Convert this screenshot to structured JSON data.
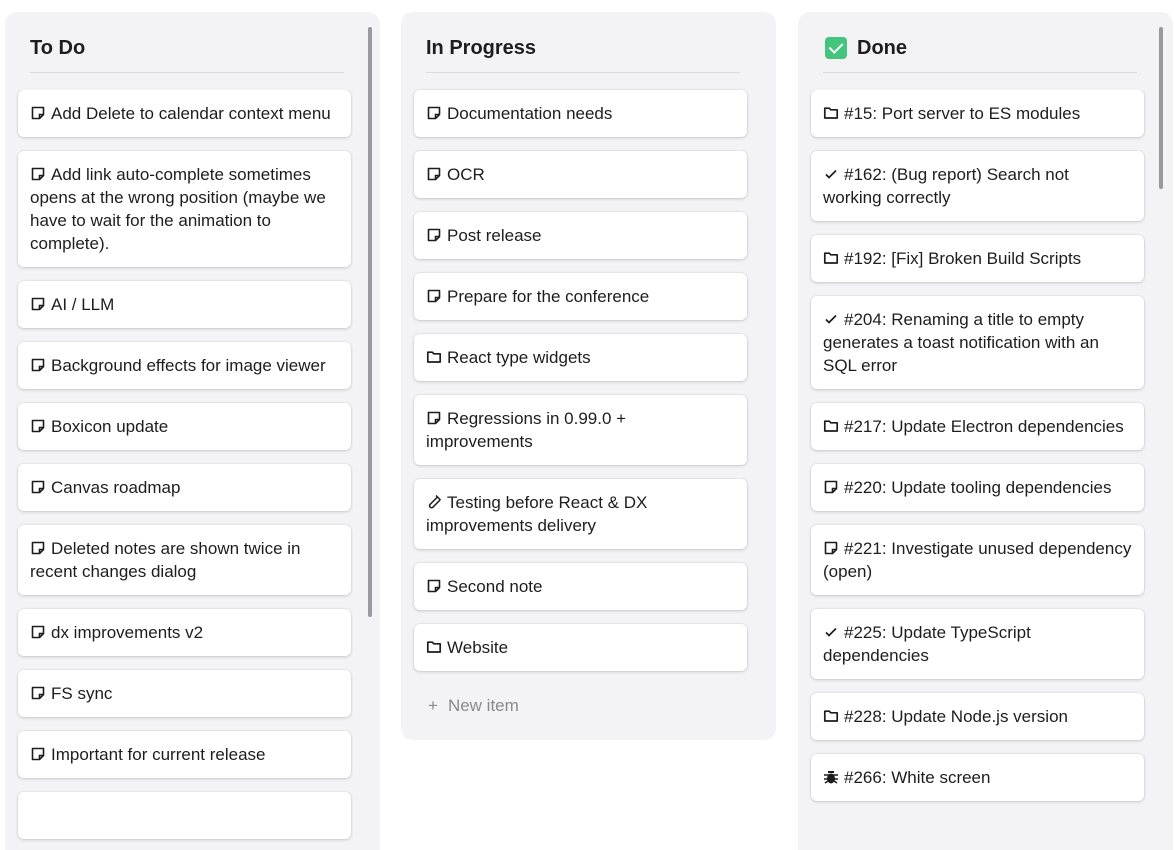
{
  "columns": [
    {
      "title": "To Do",
      "items": [
        {
          "icon": "note-icon",
          "text": "Add Delete to calendar context menu"
        },
        {
          "icon": "note-icon",
          "text": "Add link auto-complete sometimes opens at the wrong position (maybe we have to wait for the animation to complete)."
        },
        {
          "icon": "note-icon",
          "text": "AI / LLM"
        },
        {
          "icon": "note-icon",
          "text": "Background effects for image viewer"
        },
        {
          "icon": "note-icon",
          "text": "Boxicon update"
        },
        {
          "icon": "note-icon",
          "text": "Canvas roadmap"
        },
        {
          "icon": "note-icon",
          "text": "Deleted notes are shown twice in recent changes dialog"
        },
        {
          "icon": "note-icon",
          "text": "dx improvements v2"
        },
        {
          "icon": "note-icon",
          "text": "FS sync"
        },
        {
          "icon": "note-icon",
          "text": "Important for current release"
        }
      ]
    },
    {
      "title": "In Progress",
      "items": [
        {
          "icon": "note-icon",
          "text": "Documentation needs"
        },
        {
          "icon": "note-icon",
          "text": "OCR"
        },
        {
          "icon": "note-icon",
          "text": "Post release"
        },
        {
          "icon": "note-icon",
          "text": "Prepare for the conference"
        },
        {
          "icon": "folder-icon",
          "text": "React type widgets"
        },
        {
          "icon": "note-icon",
          "text": "Regressions in 0.99.0 + improvements"
        },
        {
          "icon": "test-tube-icon",
          "text": "Testing before React & DX improvements delivery"
        },
        {
          "icon": "note-icon",
          "text": "Second note"
        },
        {
          "icon": "folder-icon",
          "text": "Website"
        }
      ],
      "new_item_label": "New item"
    },
    {
      "title": "Done",
      "title_icon": "check-box-icon",
      "items": [
        {
          "icon": "folder-icon",
          "text": "#15: Port server to ES modules"
        },
        {
          "icon": "check-icon",
          "text": "#162: (Bug report) Search not working correctly"
        },
        {
          "icon": "folder-icon",
          "text": "#192: [Fix] Broken Build Scripts"
        },
        {
          "icon": "check-icon",
          "text": "#204: Renaming a title to empty generates a toast notification with an SQL error"
        },
        {
          "icon": "folder-icon",
          "text": "#217: Update Electron dependencies"
        },
        {
          "icon": "note-icon",
          "text": "#220: Update tooling dependencies"
        },
        {
          "icon": "note-icon",
          "text": "#221: Investigate unused dependency (open)"
        },
        {
          "icon": "check-icon",
          "text": "#225: Update TypeScript dependencies"
        },
        {
          "icon": "folder-icon",
          "text": "#228: Update Node.js version"
        },
        {
          "icon": "bug-icon",
          "text": "#266: White screen"
        }
      ]
    }
  ]
}
